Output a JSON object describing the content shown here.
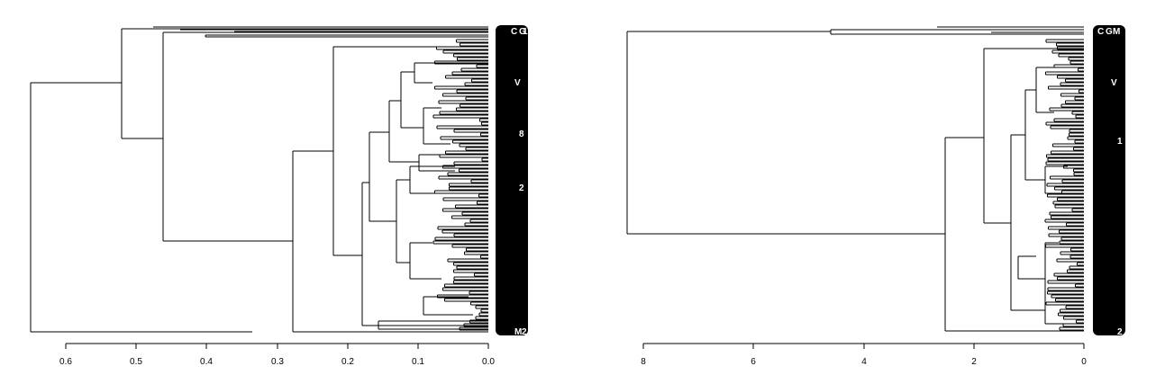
{
  "chart_data": [
    {
      "type": "dendrogram",
      "orientation": "horizontal",
      "x_axis": {
        "ticks": [
          0.6,
          0.5,
          0.4,
          0.3,
          0.2,
          0.1,
          0.0
        ],
        "tick_labels": [
          "0.6",
          "0.5",
          "0.4",
          "0.3",
          "0.2",
          "0.1",
          "0.0"
        ],
        "range": [
          0.65,
          0.0
        ]
      },
      "root_height": 0.64,
      "main_merges": [
        0.64,
        0.52,
        0.46,
        0.28,
        0.22,
        0.17
      ],
      "leaf_labels": [
        "C",
        "G",
        "V",
        "1",
        "8",
        "2",
        "M",
        "2"
      ],
      "legend": "none",
      "grid": false
    },
    {
      "type": "dendrogram",
      "orientation": "horizontal",
      "x_axis": {
        "ticks": [
          8,
          6,
          4,
          2,
          0
        ],
        "tick_labels": [
          "8",
          "6",
          "4",
          "2",
          "0"
        ],
        "range": [
          8.1,
          0
        ]
      },
      "root_height": 8.0,
      "main_merges": [
        8.0,
        2.5,
        1.8
      ],
      "leaf_labels": [
        "C",
        "G",
        "V",
        "M",
        "1",
        "2"
      ],
      "legend": "none",
      "grid": false
    }
  ]
}
